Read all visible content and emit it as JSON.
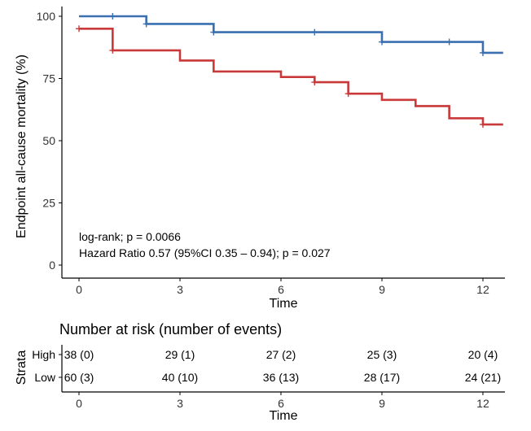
{
  "chart_data": [
    {
      "type": "line",
      "title": "",
      "xlabel": "Time",
      "ylabel": "Endpoint all-cause mortality (%)",
      "xlim": [
        0,
        12.6
      ],
      "ylim": [
        0,
        100
      ],
      "x_ticks": [
        "0",
        "3",
        "6",
        "9",
        "12"
      ],
      "y_ticks": [
        "0",
        "25",
        "50",
        "75",
        "100"
      ],
      "grid": false,
      "step": true,
      "series": [
        {
          "color": "#3a6fb0",
          "steps": [
            {
              "x": 0,
              "y": 100
            },
            {
              "x": 2,
              "y": 96.9
            },
            {
              "x": 4,
              "y": 93.6
            },
            {
              "x": 9,
              "y": 89.7
            },
            {
              "x": 12,
              "y": 85.3
            },
            {
              "x": 12.6,
              "y": 85.3
            }
          ],
          "censors": [
            {
              "x": 1,
              "y": 100
            },
            {
              "x": 2,
              "y": 96.9
            },
            {
              "x": 4,
              "y": 93.6
            },
            {
              "x": 7,
              "y": 93.6
            },
            {
              "x": 9,
              "y": 89.7
            },
            {
              "x": 11,
              "y": 89.7
            },
            {
              "x": 12,
              "y": 85.3
            }
          ]
        },
        {
          "color": "#c9393a",
          "steps": [
            {
              "x": 0,
              "y": 95
            },
            {
              "x": 1,
              "y": 86.3
            },
            {
              "x": 3,
              "y": 82.2
            },
            {
              "x": 4,
              "y": 77.8
            },
            {
              "x": 6,
              "y": 75.6
            },
            {
              "x": 7,
              "y": 73.5
            },
            {
              "x": 8,
              "y": 68.9
            },
            {
              "x": 9,
              "y": 66.4
            },
            {
              "x": 10,
              "y": 63.9
            },
            {
              "x": 11,
              "y": 59
            },
            {
              "x": 12,
              "y": 56.5
            },
            {
              "x": 12.6,
              "y": 56.5
            }
          ],
          "censors": [
            {
              "x": 0,
              "y": 95
            },
            {
              "x": 1,
              "y": 86.3
            },
            {
              "x": 7,
              "y": 73.5
            },
            {
              "x": 8,
              "y": 68.9
            },
            {
              "x": 12,
              "y": 56.5
            }
          ]
        }
      ],
      "annotations": [
        "log-rank; p = 0.0066",
        "Hazard Ratio 0.57 (95%CI 0.35 – 0.94); p = 0.027"
      ]
    },
    {
      "type": "table",
      "title": "Number at risk (number of events)",
      "xlabel": "Time",
      "ylabel": "Strata",
      "x_ticks": [
        "0",
        "3",
        "6",
        "9",
        "12"
      ],
      "rows": [
        {
          "label": "High",
          "color": "#3a6fb0",
          "cells": [
            "38 (0)",
            "29 (1)",
            "27 (2)",
            "25 (3)",
            "20 (4)"
          ]
        },
        {
          "label": "Low",
          "color": "#c9393a",
          "cells": [
            "60 (3)",
            "40 (10)",
            "36 (13)",
            "28 (17)",
            "24 (21)"
          ]
        }
      ]
    }
  ]
}
